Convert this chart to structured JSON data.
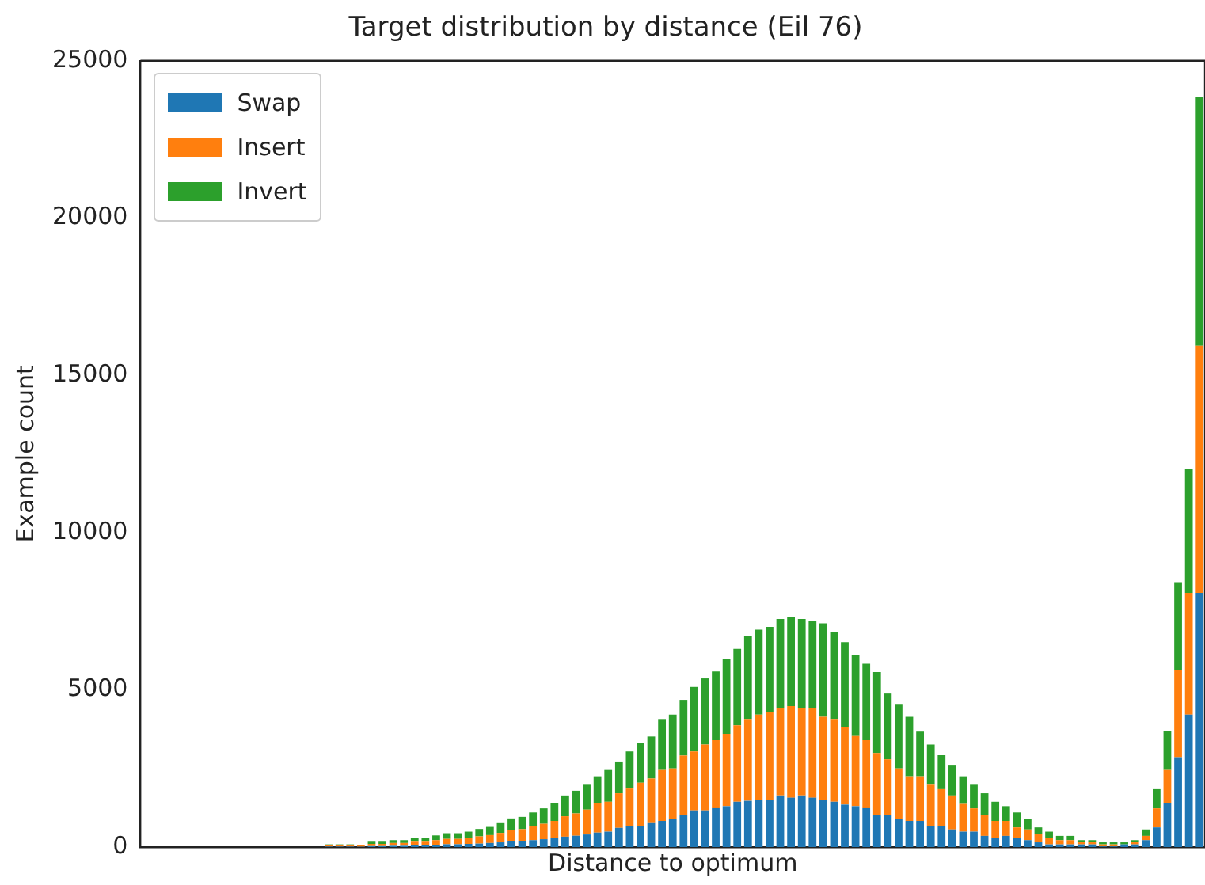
{
  "chart_data": {
    "type": "bar",
    "title": "Target distribution by distance (Eil 76)",
    "xlabel": "Distance to optimum",
    "ylabel": "Example count",
    "stacked": true,
    "grid": false,
    "legend": "top left",
    "tick_labels": "y",
    "ylim": [
      0,
      25000
    ],
    "yticks": [
      0,
      5000,
      10000,
      15000,
      20000,
      25000
    ],
    "categories": [
      null,
      null,
      null,
      null,
      null,
      null,
      null,
      null,
      null,
      null,
      null,
      null,
      null,
      null,
      null,
      null,
      null,
      null,
      null,
      null,
      null,
      null,
      null,
      null,
      null,
      null,
      null,
      null,
      null,
      null,
      null,
      null,
      null,
      null,
      null,
      null,
      null,
      null,
      null,
      null,
      null,
      null,
      null,
      null,
      null,
      null,
      null,
      null,
      null,
      null,
      null,
      null,
      null,
      null,
      null,
      null,
      null,
      null,
      null,
      null,
      null,
      null,
      null,
      null,
      null,
      null,
      null,
      null,
      null,
      null,
      null,
      null,
      null,
      null,
      null,
      null,
      null,
      null,
      null,
      null,
      null,
      null,
      null,
      null,
      null,
      null,
      null,
      null,
      null,
      null,
      null,
      null,
      null,
      null,
      null,
      null,
      null,
      null,
      null
    ],
    "series": [
      {
        "name": "Swap",
        "color": "#1f77b4",
        "values": [
          null,
          null,
          null,
          null,
          null,
          null,
          null,
          null,
          null,
          null,
          null,
          null,
          null,
          null,
          null,
          null,
          null,
          15,
          15,
          15,
          10,
          30,
          30,
          40,
          40,
          60,
          60,
          70,
          90,
          90,
          100,
          110,
          130,
          150,
          180,
          190,
          220,
          250,
          280,
          330,
          360,
          400,
          460,
          490,
          610,
          675,
          675,
          760,
          830,
          895,
          1030,
          1165,
          1165,
          1235,
          1300,
          1440,
          1470,
          1490,
          1490,
          1640,
          1570,
          1640,
          1570,
          1490,
          1440,
          1350,
          1300,
          1235,
          1030,
          1030,
          895,
          830,
          830,
          675,
          675,
          560,
          490,
          490,
          355,
          290,
          355,
          290,
          220,
          150,
          85,
          85,
          85,
          85,
          85,
          20,
          20,
          85,
          85,
          220,
          625,
          1400,
          2860,
          4210,
          8080
        ]
      },
      {
        "name": "Insert",
        "color": "#ff7f0e",
        "values": [
          null,
          null,
          null,
          null,
          null,
          null,
          null,
          null,
          null,
          null,
          null,
          null,
          null,
          null,
          null,
          null,
          null,
          35,
          35,
          35,
          40,
          70,
          70,
          90,
          90,
          110,
          110,
          150,
          170,
          170,
          190,
          230,
          250,
          300,
          360,
          380,
          440,
          490,
          550,
          650,
          710,
          790,
          930,
          950,
          1100,
          1185,
          1370,
          1420,
          1620,
          1605,
          1880,
          1875,
          2095,
          2165,
          2300,
          2430,
          2600,
          2720,
          2790,
          2770,
          2910,
          2770,
          2840,
          2650,
          2630,
          2450,
          2230,
          2165,
          1960,
          1760,
          1605,
          1420,
          1420,
          1305,
          1165,
          1080,
          880,
          740,
          675,
          540,
          475,
          335,
          340,
          270,
          205,
          135,
          135,
          65,
          65,
          65,
          65,
          0,
          65,
          135,
          605,
          1050,
          2770,
          3870,
          7860
        ]
      },
      {
        "name": "Invert",
        "color": "#2ca02c",
        "values": [
          null,
          null,
          null,
          null,
          null,
          null,
          null,
          null,
          null,
          null,
          null,
          null,
          null,
          null,
          null,
          null,
          null,
          35,
          35,
          35,
          20,
          70,
          70,
          90,
          90,
          120,
          120,
          150,
          180,
          180,
          200,
          235,
          260,
          310,
          370,
          390,
          440,
          490,
          560,
          660,
          720,
          790,
          860,
          1010,
          1010,
          1180,
          1265,
          1335,
          1620,
          1710,
          1770,
          2050,
          2100,
          2180,
          2370,
          2430,
          2640,
          2700,
          2720,
          2840,
          2820,
          2840,
          2770,
          2970,
          2770,
          2710,
          2570,
          2430,
          2570,
          2090,
          2050,
          1890,
          1420,
          1280,
          1080,
          950,
          880,
          750,
          680,
          610,
          470,
          475,
          340,
          205,
          200,
          135,
          135,
          70,
          70,
          65,
          65,
          65,
          70,
          205,
          610,
          1230,
          2790,
          3940,
          7910
        ]
      }
    ]
  }
}
